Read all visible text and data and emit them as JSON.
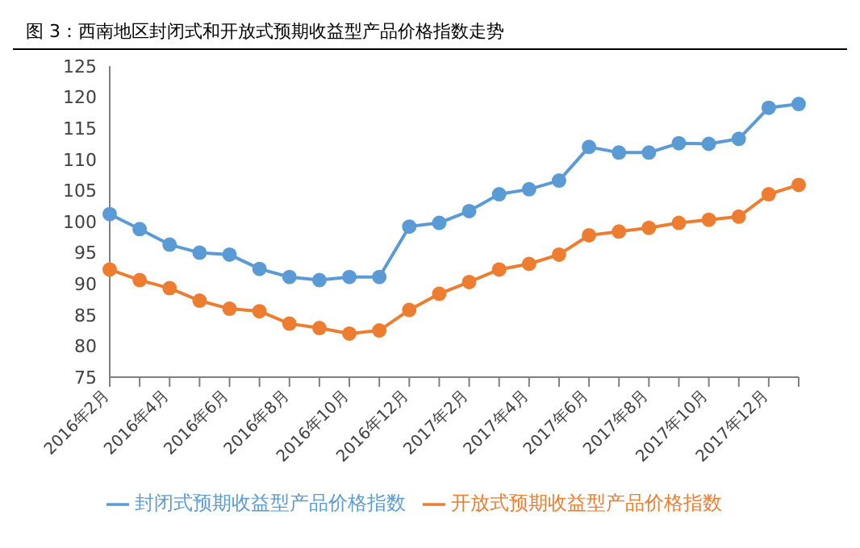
{
  "chart_data": {
    "type": "line",
    "title": "图 3：西南地区封闭式和开放式预期收益型产品价格指数走势",
    "categories": [
      "2016年2月",
      null,
      "2016年4月",
      null,
      "2016年6月",
      null,
      "2016年8月",
      null,
      "2016年10月",
      null,
      "2016年12月",
      null,
      "2017年2月",
      null,
      "2017年4月",
      null,
      "2017年6月",
      null,
      "2017年8月",
      null,
      "2017年10月",
      null,
      "2017年12月",
      null
    ],
    "series": [
      {
        "name": "封闭式预期收益型产品价格指数",
        "color": "#5b9bd5",
        "values": [
          101.2,
          98.8,
          96.3,
          95.0,
          94.7,
          92.4,
          91.1,
          90.6,
          91.1,
          91.1,
          99.2,
          99.8,
          101.7,
          104.4,
          105.2,
          106.6,
          112.0,
          111.1,
          111.1,
          112.6,
          112.5,
          113.3,
          118.3,
          118.9
        ]
      },
      {
        "name": "开放式预期收益型产品价格指数",
        "color": "#ed7d31",
        "values": [
          92.3,
          90.6,
          89.3,
          87.3,
          86.0,
          85.6,
          83.6,
          82.9,
          82.0,
          82.5,
          85.8,
          88.4,
          90.3,
          92.3,
          93.2,
          94.7,
          97.8,
          98.4,
          99.0,
          99.8,
          100.3,
          100.8,
          104.4,
          105.9
        ]
      }
    ],
    "ylim": [
      75,
      125
    ],
    "yticks": [
      75,
      80,
      85,
      90,
      95,
      100,
      105,
      110,
      115,
      120,
      125
    ],
    "grid": false,
    "legend": "bottom",
    "marker": "circle",
    "line_style": "solid"
  }
}
